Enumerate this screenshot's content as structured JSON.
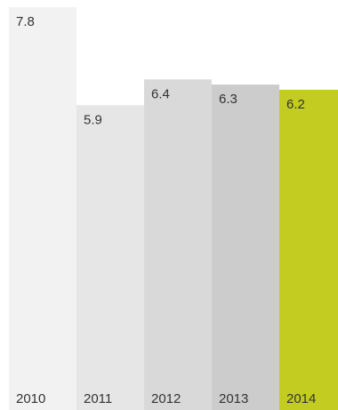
{
  "chart_data": {
    "type": "bar",
    "categories": [
      "2010",
      "2011",
      "2012",
      "2013",
      "2014"
    ],
    "values": [
      7.8,
      5.9,
      6.4,
      6.3,
      6.2
    ],
    "value_labels": [
      "7.8",
      "5.9",
      "6.4",
      "6.3",
      "6.2"
    ],
    "title": "",
    "xlabel": "",
    "ylabel": "",
    "ylim": [
      0,
      7.8
    ],
    "grid": false,
    "legend": "none",
    "bar_colors": [
      "#f2f2f2",
      "#e6e6e6",
      "#d9d9d9",
      "#cccccc",
      "#c2cc21"
    ]
  }
}
